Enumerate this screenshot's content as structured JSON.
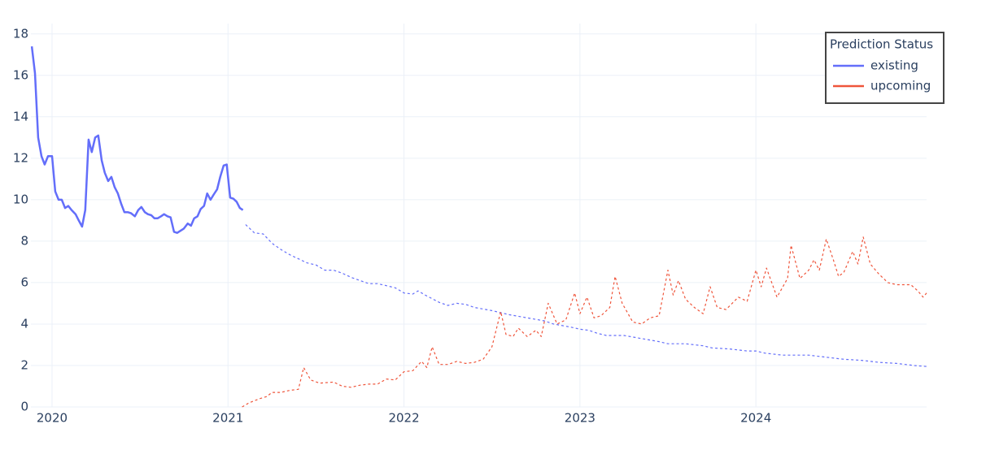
{
  "chart_data": {
    "type": "line",
    "legend_title": "Prediction Status",
    "legend": "top-right",
    "grid": true,
    "xlim": [
      2019.88,
      2024.97
    ],
    "xticks": [
      2020,
      2021,
      2022,
      2023,
      2024
    ],
    "ylim": [
      0,
      18.5
    ],
    "yticks": [
      0,
      2,
      4,
      6,
      8,
      10,
      12,
      14,
      16,
      18
    ],
    "series": [
      {
        "name": "existing",
        "color": "#636efa",
        "dash_from": 2021.1,
        "x": [
          2019.885,
          2019.903,
          2019.921,
          2019.94,
          2019.958,
          2019.977,
          2020.0,
          2020.018,
          2020.037,
          2020.055,
          2020.074,
          2020.092,
          2020.111,
          2020.134,
          2020.152,
          2020.171,
          2020.189,
          2020.208,
          2020.226,
          2020.245,
          2020.263,
          2020.282,
          2020.3,
          2020.319,
          2020.337,
          2020.356,
          2020.374,
          2020.393,
          2020.411,
          2020.43,
          2020.448,
          2020.471,
          2020.49,
          2020.508,
          2020.527,
          2020.545,
          2020.564,
          2020.582,
          2020.6,
          2020.619,
          2020.637,
          2020.656,
          2020.674,
          2020.693,
          2020.711,
          2020.73,
          2020.748,
          2020.771,
          2020.79,
          2020.808,
          2020.827,
          2020.845,
          2020.864,
          2020.882,
          2020.901,
          2020.919,
          2020.938,
          2020.956,
          2020.975,
          2020.993,
          2021.012,
          2021.03,
          2021.049,
          2021.067,
          2021.085,
          2021.1,
          2021.15,
          2021.2,
          2021.25,
          2021.3,
          2021.35,
          2021.4,
          2021.45,
          2021.5,
          2021.55,
          2021.6,
          2021.65,
          2021.7,
          2021.75,
          2021.8,
          2021.85,
          2021.9,
          2021.95,
          2022.0,
          2022.05,
          2022.08,
          2022.12,
          2022.2,
          2022.25,
          2022.3,
          2022.35,
          2022.4,
          2022.5,
          2022.6,
          2022.7,
          2022.8,
          2022.85,
          2022.95,
          2023.0,
          2023.05,
          2023.1,
          2023.15,
          2023.25,
          2023.35,
          2023.45,
          2023.5,
          2023.6,
          2023.7,
          2023.75,
          2023.85,
          2023.95,
          2024.0,
          2024.05,
          2024.15,
          2024.3,
          2024.4,
          2024.5,
          2024.6,
          2024.7,
          2024.8,
          2024.9,
          2024.97
        ],
        "values": [
          17.4,
          16.1,
          13.0,
          12.1,
          11.7,
          12.1,
          12.1,
          10.4,
          10.0,
          10.0,
          9.6,
          9.7,
          9.5,
          9.3,
          9.0,
          8.7,
          9.5,
          12.9,
          12.3,
          13.0,
          13.1,
          11.9,
          11.3,
          10.9,
          11.1,
          10.6,
          10.3,
          9.8,
          9.4,
          9.4,
          9.35,
          9.2,
          9.5,
          9.65,
          9.4,
          9.3,
          9.25,
          9.1,
          9.1,
          9.2,
          9.3,
          9.2,
          9.15,
          8.45,
          8.4,
          8.5,
          8.6,
          8.85,
          8.75,
          9.1,
          9.2,
          9.55,
          9.7,
          10.3,
          10.0,
          10.25,
          10.5,
          11.1,
          11.65,
          11.7,
          10.1,
          10.05,
          9.9,
          9.6,
          9.5,
          8.8,
          8.4,
          8.35,
          7.9,
          7.6,
          7.35,
          7.15,
          6.95,
          6.85,
          6.6,
          6.6,
          6.45,
          6.25,
          6.1,
          5.95,
          5.95,
          5.85,
          5.75,
          5.5,
          5.45,
          5.6,
          5.4,
          5.05,
          4.9,
          5.0,
          4.95,
          4.8,
          4.65,
          4.45,
          4.3,
          4.15,
          4.0,
          3.85,
          3.75,
          3.7,
          3.55,
          3.45,
          3.45,
          3.3,
          3.15,
          3.05,
          3.05,
          2.95,
          2.85,
          2.8,
          2.7,
          2.7,
          2.6,
          2.5,
          2.5,
          2.4,
          2.3,
          2.25,
          2.15,
          2.1,
          2.0,
          1.95
        ]
      },
      {
        "name": "upcoming",
        "color": "#ef553b",
        "dash_from": 2021.08,
        "x": [
          2021.08,
          2021.12,
          2021.18,
          2021.22,
          2021.25,
          2021.3,
          2021.35,
          2021.4,
          2021.43,
          2021.47,
          2021.52,
          2021.6,
          2021.65,
          2021.7,
          2021.75,
          2021.8,
          2021.85,
          2021.9,
          2021.95,
          2022.0,
          2022.05,
          2022.1,
          2022.13,
          2022.16,
          2022.2,
          2022.25,
          2022.3,
          2022.35,
          2022.4,
          2022.45,
          2022.5,
          2022.55,
          2022.58,
          2022.62,
          2022.65,
          2022.7,
          2022.75,
          2022.78,
          2022.82,
          2022.87,
          2022.92,
          2022.97,
          2023.0,
          2023.04,
          2023.08,
          2023.12,
          2023.17,
          2023.2,
          2023.24,
          2023.3,
          2023.35,
          2023.4,
          2023.45,
          2023.5,
          2023.53,
          2023.56,
          2023.6,
          2023.65,
          2023.7,
          2023.74,
          2023.78,
          2023.83,
          2023.9,
          2023.95,
          2024.0,
          2024.03,
          2024.06,
          2024.12,
          2024.18,
          2024.2,
          2024.25,
          2024.3,
          2024.33,
          2024.36,
          2024.4,
          2024.44,
          2024.47,
          2024.5,
          2024.55,
          2024.58,
          2024.61,
          2024.65,
          2024.7,
          2024.75,
          2024.8,
          2024.88,
          2024.92,
          2024.95,
          2024.97
        ],
        "values": [
          0,
          0.2,
          0.4,
          0.5,
          0.7,
          0.7,
          0.8,
          0.85,
          1.9,
          1.3,
          1.15,
          1.2,
          1.0,
          0.95,
          1.05,
          1.1,
          1.1,
          1.35,
          1.3,
          1.7,
          1.75,
          2.2,
          1.9,
          2.9,
          2.05,
          2.05,
          2.2,
          2.1,
          2.15,
          2.3,
          2.9,
          4.6,
          3.5,
          3.4,
          3.8,
          3.4,
          3.7,
          3.4,
          5.0,
          4.0,
          4.2,
          5.5,
          4.5,
          5.3,
          4.3,
          4.4,
          4.8,
          6.3,
          5.0,
          4.1,
          4.0,
          4.3,
          4.4,
          6.6,
          5.4,
          6.1,
          5.2,
          4.8,
          4.5,
          5.8,
          4.8,
          4.7,
          5.3,
          5.1,
          6.6,
          5.8,
          6.7,
          5.3,
          6.2,
          7.8,
          6.2,
          6.6,
          7.1,
          6.6,
          8.1,
          7.1,
          6.3,
          6.5,
          7.5,
          6.9,
          8.2,
          6.9,
          6.4,
          6.0,
          5.9,
          5.9,
          5.6,
          5.3,
          5.5
        ]
      }
    ]
  }
}
